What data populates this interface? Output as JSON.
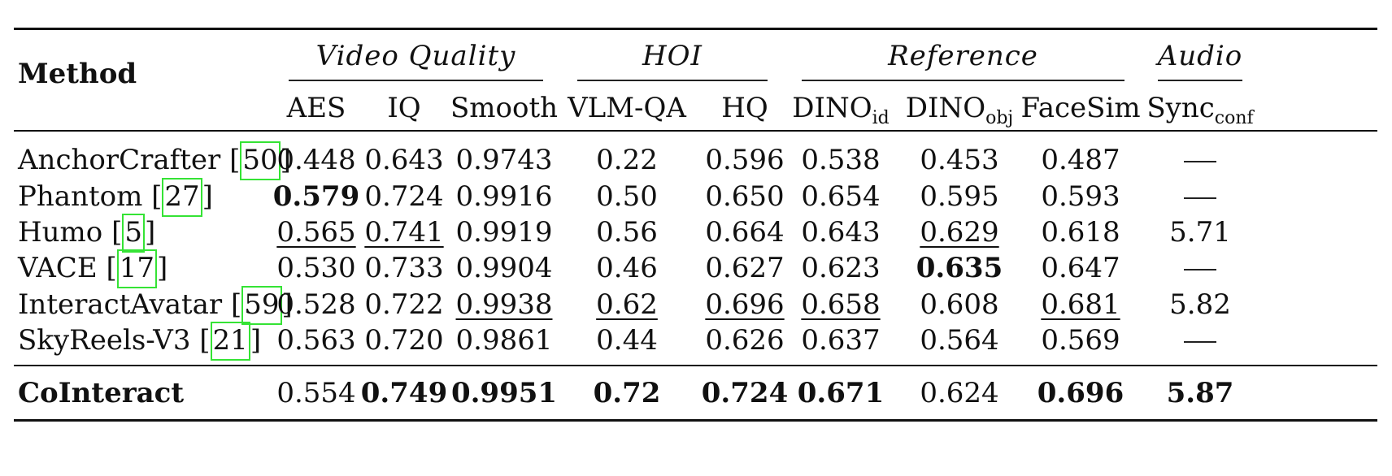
{
  "table": {
    "method_header": "Method",
    "groups": [
      {
        "label": "Video Quality",
        "columns": [
          "aes",
          "iq",
          "smooth"
        ]
      },
      {
        "label": "HOI",
        "columns": [
          "vlmqa",
          "hq"
        ]
      },
      {
        "label": "Reference",
        "columns": [
          "dino_id",
          "dino_obj",
          "facesim"
        ]
      },
      {
        "label": "Audio",
        "columns": [
          "sync"
        ]
      }
    ],
    "columns": [
      {
        "key": "aes",
        "label": "AES",
        "sub": ""
      },
      {
        "key": "iq",
        "label": "IQ",
        "sub": ""
      },
      {
        "key": "smooth",
        "label": "Smooth",
        "sub": ""
      },
      {
        "key": "vlmqa",
        "label": "VLM-QA",
        "sub": ""
      },
      {
        "key": "hq",
        "label": "HQ",
        "sub": ""
      },
      {
        "key": "dino_id",
        "label": "DINO",
        "sub": "id"
      },
      {
        "key": "dino_obj",
        "label": "DINO",
        "sub": "obj"
      },
      {
        "key": "facesim",
        "label": "FaceSim",
        "sub": ""
      },
      {
        "key": "sync",
        "label": "Sync",
        "sub": "conf"
      }
    ],
    "rows": [
      {
        "method": "AnchorCrafter",
        "cite": "50",
        "bold": false,
        "values": [
          "0.448",
          "0.643",
          "0.9743",
          "0.22",
          "0.596",
          "0.538",
          "0.453",
          "0.487",
          "—"
        ],
        "styles": [
          "",
          "",
          "",
          "",
          "",
          "",
          "",
          "",
          ""
        ]
      },
      {
        "method": "Phantom",
        "cite": "27",
        "bold": false,
        "values": [
          "0.579",
          "0.724",
          "0.9916",
          "0.50",
          "0.650",
          "0.654",
          "0.595",
          "0.593",
          "—"
        ],
        "styles": [
          "bold",
          "",
          "",
          "",
          "",
          "",
          "",
          "",
          ""
        ]
      },
      {
        "method": "Humo",
        "cite": "5",
        "bold": false,
        "values": [
          "0.565",
          "0.741",
          "0.9919",
          "0.56",
          "0.664",
          "0.643",
          "0.629",
          "0.618",
          "5.71"
        ],
        "styles": [
          "under",
          "under",
          "",
          "",
          "",
          "",
          "under",
          "",
          ""
        ]
      },
      {
        "method": "VACE",
        "cite": "17",
        "bold": false,
        "values": [
          "0.530",
          "0.733",
          "0.9904",
          "0.46",
          "0.627",
          "0.623",
          "0.635",
          "0.647",
          "—"
        ],
        "styles": [
          "",
          "",
          "",
          "",
          "",
          "",
          "bold",
          "",
          ""
        ]
      },
      {
        "method": "InteractAvatar",
        "cite": "59",
        "bold": false,
        "values": [
          "0.528",
          "0.722",
          "0.9938",
          "0.62",
          "0.696",
          "0.658",
          "0.608",
          "0.681",
          "5.82"
        ],
        "styles": [
          "",
          "",
          "under",
          "under",
          "under",
          "under",
          "",
          "under",
          ""
        ]
      },
      {
        "method": "SkyReels-V3",
        "cite": "21",
        "bold": false,
        "values": [
          "0.563",
          "0.720",
          "0.9861",
          "0.44",
          "0.626",
          "0.637",
          "0.564",
          "0.569",
          "—"
        ],
        "styles": [
          "",
          "",
          "",
          "",
          "",
          "",
          "",
          "",
          ""
        ]
      },
      {
        "method": "CoInteract",
        "cite": "",
        "bold": true,
        "values": [
          "0.554",
          "0.749",
          "0.9951",
          "0.72",
          "0.724",
          "0.671",
          "0.624",
          "0.696",
          "5.87"
        ],
        "styles": [
          "",
          "bold",
          "bold",
          "bold",
          "bold",
          "bold",
          "",
          "bold",
          "bold"
        ]
      }
    ]
  }
}
